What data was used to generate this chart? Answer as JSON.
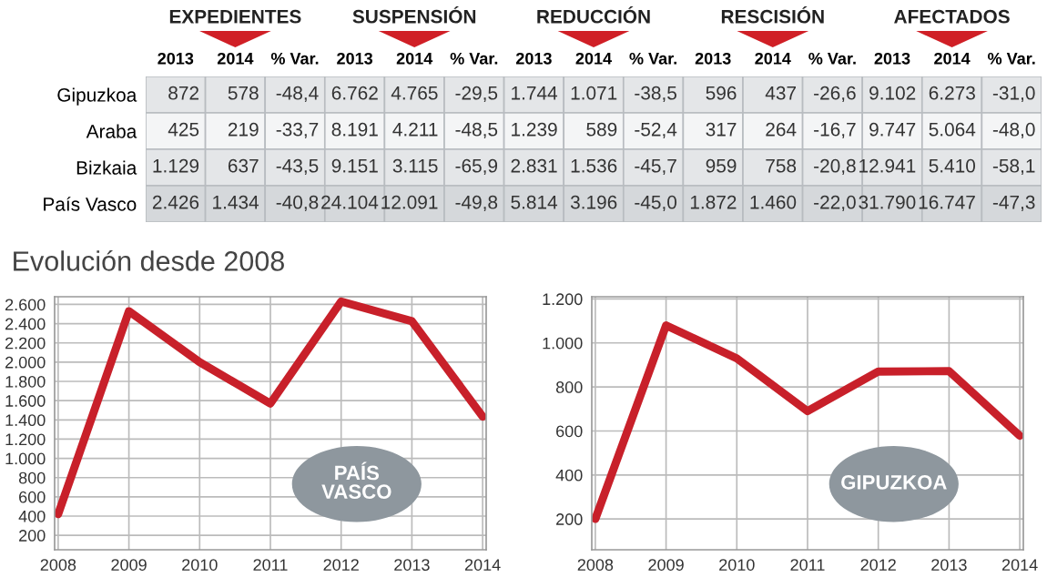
{
  "chart_data": [
    {
      "type": "heatmap",
      "annotations": [
        "EXPEDIENTES",
        "SUSPENSIÓN",
        "REDUCCIÓN",
        "RESCISIÓN",
        "AFECTADOS"
      ],
      "categories": [
        "2013",
        "2014",
        "% Var.",
        "2013",
        "2014",
        "% Var.",
        "2013",
        "2014",
        "% Var.",
        "2013",
        "2014",
        "% Var.",
        "2013",
        "2014",
        "% Var."
      ],
      "y_categories": [
        "Gipuzkoa",
        "Araba",
        "Bizkaia",
        "País Vasco"
      ],
      "cells": [
        [
          872,
          578,
          -48.4,
          6762,
          4765,
          -29.5,
          1744,
          1071,
          -38.5,
          596,
          437,
          -26.6,
          9102,
          6273,
          -31.0
        ],
        [
          425,
          219,
          -33.7,
          8191,
          4211,
          -48.5,
          1239,
          589,
          -52.4,
          317,
          264,
          -16.7,
          9747,
          5064,
          -48.0
        ],
        [
          1129,
          637,
          -43.5,
          9151,
          3115,
          -65.9,
          2831,
          1536,
          -45.7,
          959,
          758,
          -20.8,
          12941,
          5410,
          -58.1
        ],
        [
          2426,
          1434,
          -40.8,
          24104,
          12091,
          -49.8,
          5814,
          3196,
          -45.0,
          1872,
          1460,
          -22.0,
          31790,
          16747,
          -47.3
        ]
      ],
      "cell_labels": [
        [
          "872",
          "578",
          "-48,4",
          "6.762",
          "4.765",
          "-29,5",
          "1.744",
          "1.071",
          "-38,5",
          "596",
          "437",
          "-26,6",
          "9.102",
          "6.273",
          "-31,0"
        ],
        [
          "425",
          "219",
          "-33,7",
          "8.191",
          "4.211",
          "-48,5",
          "1.239",
          "589",
          "-52,4",
          "317",
          "264",
          "-16,7",
          "9.747",
          "5.064",
          "-48,0"
        ],
        [
          "1.129",
          "637",
          "-43,5",
          "9.151",
          "3.115",
          "-65,9",
          "2.831",
          "1.536",
          "-45,7",
          "959",
          "758",
          "-20,8",
          "12.941",
          "5.410",
          "-58,1"
        ],
        [
          "2.426",
          "1.434",
          "-40,8",
          "24.104",
          "12.091",
          "-49,8",
          "5.814",
          "3.196",
          "-45,0",
          "1.872",
          "1.460",
          "-22,0",
          "31.790",
          "16.747",
          "-47,3"
        ]
      ]
    },
    {
      "type": "line",
      "title": "Evolución desde 2008",
      "annotations": [
        "PAÍS VASCO"
      ],
      "categories": [
        "2008",
        "2009",
        "2010",
        "2011",
        "2012",
        "2013",
        "2014"
      ],
      "series": [
        {
          "color": "#c8202a",
          "values": [
            420,
            2530,
            2000,
            1570,
            2630,
            2426,
            1434
          ]
        }
      ],
      "ylim": [
        50,
        2680
      ],
      "yticks": [
        200,
        400,
        600,
        800,
        {
          "value": 1000,
          "label": "1.000"
        },
        {
          "value": 1200,
          "label": "1.200"
        },
        {
          "value": 1400,
          "label": "1.400"
        },
        {
          "value": 1600,
          "label": "1.600"
        },
        {
          "value": 1800,
          "label": "1.800"
        },
        {
          "value": 2000,
          "label": "2.000"
        },
        {
          "value": 2200,
          "label": "2.200"
        },
        {
          "value": 2400,
          "label": "2.400"
        },
        {
          "value": 2600,
          "label": "2.600"
        }
      ],
      "grid": true
    },
    {
      "type": "line",
      "annotations": [
        "GIPUZKOA"
      ],
      "categories": [
        "2008",
        "2009",
        "2010",
        "2011",
        "2012",
        "2013",
        "2014"
      ],
      "series": [
        {
          "color": "#c8202a",
          "values": [
            200,
            1080,
            930,
            690,
            870,
            872,
            578
          ]
        }
      ],
      "ylim": [
        60,
        1210
      ],
      "yticks": [
        200,
        400,
        600,
        800,
        {
          "value": 1000,
          "label": "1.000"
        },
        {
          "value": 1200,
          "label": "1.200"
        }
      ],
      "grid": true
    }
  ]
}
